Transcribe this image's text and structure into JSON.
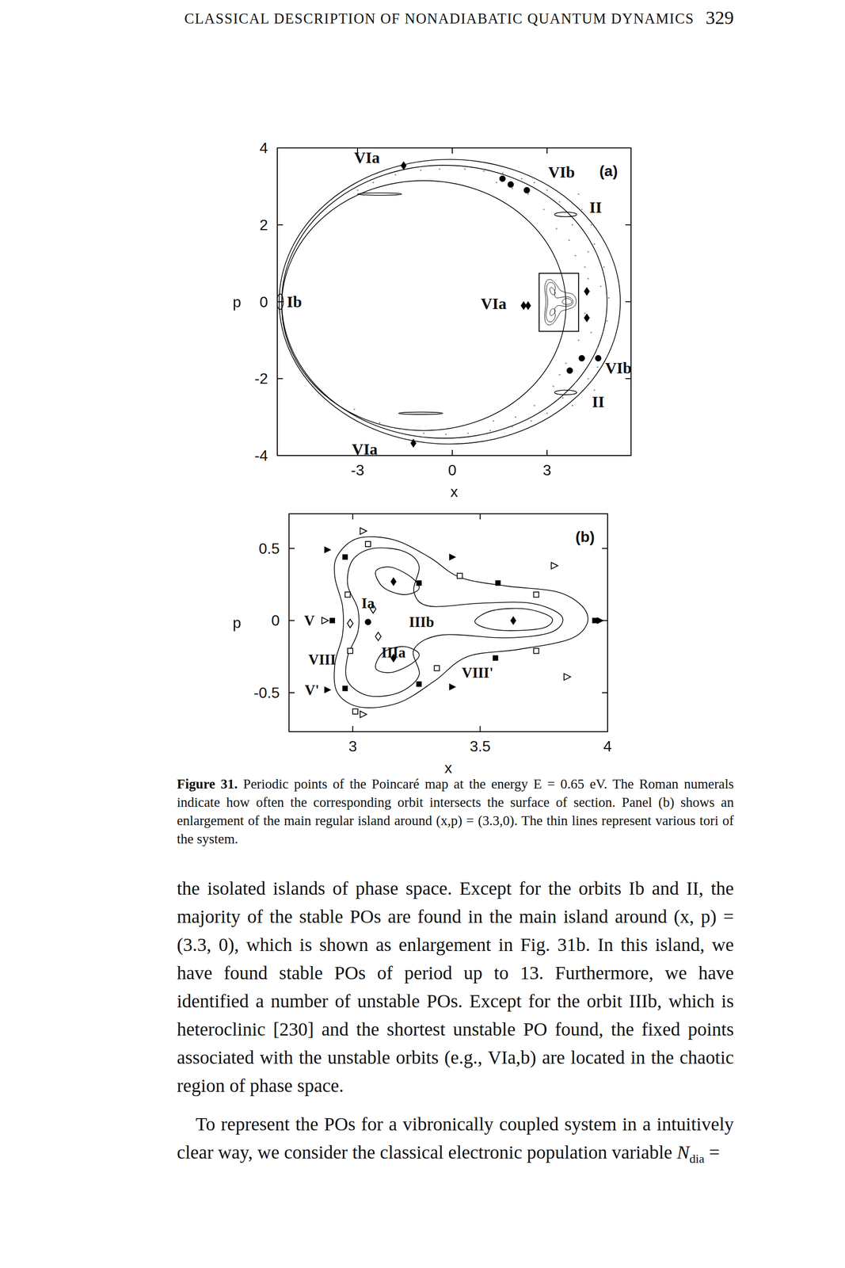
{
  "header": {
    "title": "CLASSICAL DESCRIPTION OF NONADIABATIC QUANTUM DYNAMICS",
    "page": "329"
  },
  "chart_data": [
    {
      "type": "scatter",
      "panel_label": "(a)",
      "x_label": "x",
      "y_label": "p",
      "xlim": [
        -5.54,
        5.66
      ],
      "ylim": [
        -4,
        4
      ],
      "xticks": [
        -3,
        0,
        3
      ],
      "yticks": [
        -4,
        -2,
        0,
        2,
        4
      ],
      "tori": [
        {
          "cx": -0.08,
          "cy": 0,
          "rx": 5.4,
          "ry": 3.7
        },
        {
          "cx": -0.25,
          "cy": 0,
          "rx": 5.15,
          "ry": 3.55
        },
        {
          "cx": -0.9,
          "cy": -0.1,
          "rx": 4.5,
          "ry": 3.25
        },
        {
          "cx": 3.59,
          "cy": 2.27,
          "rx": 0.35,
          "ry": 0.06
        },
        {
          "cx": 3.59,
          "cy": -2.36,
          "rx": 0.35,
          "ry": 0.06
        },
        {
          "cx": -2.3,
          "cy": 2.8,
          "rx": 0.7,
          "ry": 0.03
        },
        {
          "cx": -1.0,
          "cy": -2.9,
          "rx": 0.7,
          "ry": 0.03
        },
        {
          "cx": -5.45,
          "cy": 0,
          "rx": 0.1,
          "ry": 0.2
        }
      ],
      "series": [
        {
          "marker": "dot",
          "color": "#888888",
          "x": [
            3.9,
            4.2,
            4.5,
            3.8,
            4.1,
            3.4,
            3.0,
            2.6,
            2.2,
            1.6,
            1.0,
            0.4,
            -0.4,
            -1.0,
            -1.8,
            -2.5,
            4.7,
            4.9,
            4.4,
            4.0,
            4.6,
            3.9,
            4.3,
            3.5,
            3.0,
            2.5,
            1.9,
            1.2,
            0.5,
            -0.2,
            -0.9,
            -1.6,
            -2.3,
            3.7,
            4.4,
            3.6,
            4.8,
            4.2,
            2.9,
            3.2,
            2.4,
            2.6,
            4.6,
            4.0,
            3.8,
            4.95,
            4.3,
            1.9,
            2.0,
            -3.0,
            -3.1,
            4.3,
            4.5,
            3.3,
            3.4,
            1.4,
            1.3
          ],
          "values": [
            1.2,
            0.9,
            1.5,
            2.0,
            2.4,
            2.6,
            2.9,
            3.1,
            3.2,
            3.35,
            3.4,
            3.45,
            3.45,
            3.42,
            3.3,
            3.1,
            0.4,
            -0.5,
            -0.8,
            -1.0,
            -1.2,
            -2.1,
            -2.0,
            -2.5,
            -2.9,
            -3.1,
            -3.25,
            -3.35,
            -3.42,
            -3.45,
            -3.42,
            -3.3,
            -3.15,
            1.6,
            2.0,
            -1.6,
            0.9,
            -0.3,
            2.4,
            -2.2,
            2.8,
            -2.7,
            -1.7,
            2.8,
            -2.7,
            0.1,
            0.6,
            2.95,
            -3.0,
            2.9,
            -2.8,
            1.3,
            -2.3,
            1.9,
            -1.9,
            3.1,
            -3.1
          ]
        },
        {
          "marker": "diamond",
          "color": "#000000",
          "x": [
            -1.54,
            -1.23,
            2.26,
            2.4,
            4.26,
            4.26
          ],
          "values": [
            3.54,
            -3.68,
            -0.1,
            -0.1,
            0.27,
            -0.42
          ]
        },
        {
          "marker": "circle",
          "color": "#000000",
          "x": [
            1.59,
            1.85,
            2.36,
            4.1,
            3.72,
            4.62
          ],
          "values": [
            3.2,
            3.05,
            2.9,
            -1.47,
            -1.79,
            -1.47
          ]
        }
      ],
      "annotations": [
        {
          "text": "VIa",
          "x": -2.7,
          "y": 3.75
        },
        {
          "text": "VIb",
          "x": 3.46,
          "y": 3.37
        },
        {
          "text": "II",
          "x": 4.54,
          "y": 2.46
        },
        {
          "text": "Ib",
          "x": -5.0,
          "y": 0
        },
        {
          "text": "VIa",
          "x": 1.31,
          "y": -0.04
        },
        {
          "text": "VIb",
          "x": 5.26,
          "y": -1.72
        },
        {
          "text": "II",
          "x": 4.62,
          "y": -2.6
        },
        {
          "text": "VIa",
          "x": -2.77,
          "y": -3.83
        }
      ],
      "zoom_box": {
        "xlim": [
          2.75,
          4.0
        ],
        "ylim": [
          -0.77,
          0.74
        ]
      }
    },
    {
      "type": "scatter",
      "panel_label": "(b)",
      "x_label": "x",
      "y_label": "p",
      "xlim": [
        2.75,
        4.0
      ],
      "ylim": [
        -0.77,
        0.74
      ],
      "xticks": [
        3,
        3.5,
        4
      ],
      "yticks": [
        -0.5,
        0,
        0.5
      ],
      "tori": [
        {
          "points": [
            [
              2.94,
              0.45
            ],
            [
              3.02,
              0.57
            ],
            [
              3.16,
              0.56
            ],
            [
              3.3,
              0.44
            ],
            [
              3.42,
              0.3
            ],
            [
              3.6,
              0.24
            ],
            [
              3.8,
              0.2
            ],
            [
              3.9,
              0.1
            ],
            [
              3.92,
              -0.02
            ],
            [
              3.85,
              -0.13
            ],
            [
              3.65,
              -0.2
            ],
            [
              3.45,
              -0.25
            ],
            [
              3.32,
              -0.42
            ],
            [
              3.18,
              -0.57
            ],
            [
              3.03,
              -0.6
            ],
            [
              2.94,
              -0.5
            ],
            [
              2.93,
              -0.3
            ],
            [
              2.96,
              -0.1
            ],
            [
              2.96,
              0.1
            ],
            [
              2.93,
              0.3
            ]
          ]
        },
        {
          "points": [
            [
              3.0,
              0.42
            ],
            [
              3.08,
              0.5
            ],
            [
              3.2,
              0.48
            ],
            [
              3.26,
              0.38
            ],
            [
              3.24,
              0.2
            ],
            [
              3.3,
              0.1
            ],
            [
              3.5,
              0.12
            ],
            [
              3.7,
              0.12
            ],
            [
              3.82,
              0.03
            ],
            [
              3.78,
              -0.08
            ],
            [
              3.6,
              -0.12
            ],
            [
              3.35,
              -0.1
            ],
            [
              3.24,
              -0.2
            ],
            [
              3.26,
              -0.38
            ],
            [
              3.18,
              -0.5
            ],
            [
              3.06,
              -0.52
            ],
            [
              2.98,
              -0.42
            ],
            [
              2.98,
              -0.25
            ],
            [
              3.02,
              -0.08
            ],
            [
              3.02,
              0.08
            ],
            [
              2.98,
              0.25
            ]
          ]
        },
        {
          "points": [
            [
              3.09,
              0.34
            ],
            [
              3.15,
              0.37
            ],
            [
              3.23,
              0.3
            ],
            [
              3.26,
              0.22
            ],
            [
              3.2,
              0.18
            ],
            [
              3.12,
              0.23
            ]
          ]
        },
        {
          "points": [
            [
              3.48,
              0.0
            ],
            [
              3.55,
              0.07
            ],
            [
              3.68,
              0.08
            ],
            [
              3.78,
              0.02
            ],
            [
              3.75,
              -0.05
            ],
            [
              3.62,
              -0.07
            ],
            [
              3.52,
              -0.05
            ]
          ]
        },
        {
          "points": [
            [
              3.09,
              -0.33
            ],
            [
              3.12,
              -0.22
            ],
            [
              3.2,
              -0.18
            ],
            [
              3.26,
              -0.23
            ],
            [
              3.23,
              -0.3
            ],
            [
              3.15,
              -0.36
            ]
          ]
        }
      ],
      "series": [
        {
          "marker": "diamond",
          "color": "#000000",
          "x": [
            3.16,
            3.63,
            3.16
          ],
          "values": [
            0.27,
            0,
            -0.26
          ]
        },
        {
          "marker": "diamond-open",
          "color": "#000000",
          "x": [
            3.08,
            2.99,
            3.1
          ],
          "values": [
            0.08,
            -0.02,
            -0.11
          ]
        },
        {
          "marker": "circle",
          "color": "#000000",
          "x": [
            3.06
          ],
          "values": [
            -0.01
          ]
        },
        {
          "marker": "square",
          "color": "#000000",
          "x": [
            2.92,
            2.97,
            3.26,
            3.57,
            3.95,
            3.56,
            3.26,
            2.97
          ],
          "values": [
            0,
            0.44,
            0.26,
            0.26,
            0,
            -0.26,
            -0.44,
            -0.47
          ]
        },
        {
          "marker": "square-open",
          "color": "#000000",
          "x": [
            3.06,
            3.42,
            3.72,
            3.72,
            3.33,
            3.01,
            2.98,
            2.99
          ],
          "values": [
            0.53,
            0.31,
            0.18,
            -0.21,
            -0.33,
            -0.63,
            0.18,
            -0.21
          ]
        },
        {
          "marker": "triangle",
          "color": "#000000",
          "x": [
            2.9,
            3.39,
            3.97,
            3.39,
            2.9
          ],
          "values": [
            0.49,
            0.44,
            0,
            -0.46,
            -0.48
          ]
        },
        {
          "marker": "triangle-open",
          "color": "#000000",
          "x": [
            3.04,
            3.79,
            2.89,
            3.84,
            3.04
          ],
          "values": [
            0.62,
            0.38,
            0,
            -0.39,
            -0.65
          ]
        }
      ],
      "annotations": [
        {
          "text": "Ia",
          "x": 3.06,
          "y": 0.12
        },
        {
          "text": "IIIb",
          "x": 3.27,
          "y": -0.01
        },
        {
          "text": "IIIa",
          "x": 3.16,
          "y": -0.22
        },
        {
          "text": "V",
          "x": 2.83,
          "y": 0
        },
        {
          "text": "VIII",
          "x": 2.88,
          "y": -0.27
        },
        {
          "text": "V'",
          "x": 2.84,
          "y": -0.48
        },
        {
          "text": "VIII'",
          "x": 3.49,
          "y": -0.36
        }
      ]
    }
  ],
  "caption": {
    "label": "Figure 31.",
    "text": "Periodic points of the Poincaré map at the energy E = 0.65 eV. The Roman numerals indicate how often the corresponding orbit intersects the surface of section. Panel (b) shows an enlargement of the main regular island around (x,p) = (3.3,0). The thin lines represent various tori of the system."
  },
  "body": {
    "paragraph_1": "the isolated islands of phase space. Except for the orbits Ib and II, the majority of the stable POs are found in the main island around (x, p) = (3.3, 0), which is shown as enlargement in Fig. 31b. In this island, we have found stable POs of period up to 13. Furthermore, we have identified a number of unstable POs. Except for the orbit IIIb, which is heteroclinic [230] and the shortest unstable PO found, the fixed points associated with the unstable orbits (e.g., VIa,b) are located in the chaotic region of phase space.",
    "paragraph_2": {
      "text": "To represent the POs for a vibronically coupled system in a intuitively clear way, we consider the classical electronic population variable ",
      "var": "N",
      "sub": "dia",
      "tail": " ="
    }
  }
}
